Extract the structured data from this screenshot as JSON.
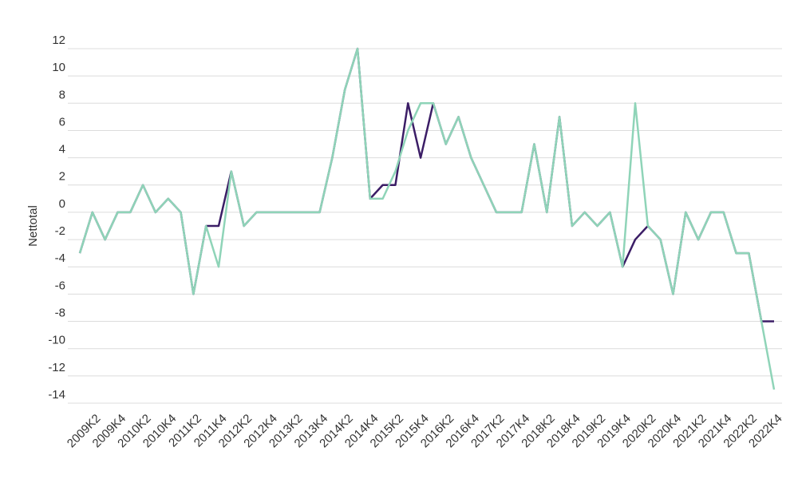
{
  "chart_data": {
    "type": "line",
    "y_label": "Nettotal",
    "categories": [
      null,
      "2009K2",
      null,
      "2009K4",
      null,
      "2010K2",
      null,
      "2010K4",
      null,
      "2011K2",
      null,
      "2011K4",
      null,
      "2012K2",
      null,
      "2012K4",
      null,
      "2013K2",
      null,
      "2013K4",
      null,
      "2014K2",
      null,
      "2014K4",
      null,
      "2015K2",
      null,
      "2015K4",
      null,
      "2016K2",
      null,
      "2016K4",
      null,
      "2017K2",
      null,
      "2017K4",
      null,
      "2018K2",
      null,
      "2018K4",
      null,
      "2019K2",
      null,
      "2019K4",
      null,
      "2020K2",
      null,
      "2020K4",
      null,
      "2021K2",
      null,
      "2021K4",
      null,
      "2022K2",
      null,
      "2022K4"
    ],
    "series": [
      {
        "color": "#3b1d66",
        "values": [
          -3,
          0,
          -2,
          0,
          0,
          2,
          0,
          1,
          0,
          -6,
          -1,
          -1,
          3,
          -1,
          0,
          0,
          0,
          0,
          0,
          0,
          4,
          9,
          12,
          1,
          2,
          2,
          8,
          4,
          8,
          5,
          7,
          4,
          2,
          0,
          0,
          0,
          5,
          0,
          7,
          -1,
          0,
          -1,
          0,
          -4,
          -2,
          -1,
          -2,
          -6,
          0,
          -2,
          0,
          0,
          -3,
          -3,
          -8,
          -8
        ]
      },
      {
        "color": "#8fd4b8",
        "values": [
          -3,
          0,
          -2,
          0,
          0,
          2,
          0,
          1,
          0,
          -6,
          -1,
          -4,
          3,
          -1,
          0,
          0,
          0,
          0,
          0,
          0,
          4,
          9,
          12,
          1,
          1,
          3,
          6,
          8,
          8,
          5,
          7,
          4,
          2,
          0,
          0,
          0,
          5,
          0,
          7,
          -1,
          0,
          -1,
          0,
          -4,
          8,
          -1,
          -2,
          -6,
          0,
          -2,
          0,
          0,
          -3,
          -3,
          -8,
          -13
        ]
      }
    ],
    "ylim": [
      -14,
      12
    ],
    "yticks": [
      -14,
      -12,
      -10,
      -8,
      -6,
      -4,
      -2,
      0,
      2,
      4,
      6,
      8,
      10,
      12
    ],
    "grid": true
  }
}
